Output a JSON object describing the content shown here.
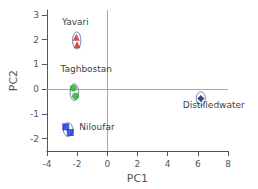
{
  "chart_data": {
    "type": "scatter",
    "title": "",
    "xlabel": "PC1",
    "ylabel": "PC2",
    "xlim": [
      -4,
      8
    ],
    "ylim": [
      -2.5,
      3.2
    ],
    "xticks": [
      -4,
      -2,
      0,
      2,
      4,
      6,
      8
    ],
    "yticks": [
      -2,
      -1,
      0,
      1,
      2,
      3
    ],
    "grid": false,
    "ref_lines": {
      "x": [
        0
      ],
      "y": [
        0
      ],
      "color": "#aaaaaa"
    },
    "series": [
      {
        "name": "Yavari",
        "marker": "triangle",
        "color": "#cc2222",
        "values": [
          [
            -2.05,
            2.1
          ],
          [
            -2.0,
            1.8
          ]
        ],
        "ellipse": {
          "center": [
            -2.02,
            1.97
          ],
          "width": 0.55,
          "height": 0.68,
          "color": "#5577aa"
        }
      },
      {
        "name": "Taghbostan",
        "marker": "circle",
        "color": "#22aa22",
        "values": [
          [
            -2.25,
            0.05
          ],
          [
            -2.1,
            -0.28
          ]
        ],
        "ellipse": {
          "center": [
            -2.18,
            -0.12
          ],
          "width": 0.55,
          "height": 0.68,
          "color": "#5577aa"
        }
      },
      {
        "name": "Niloufar",
        "marker": "square",
        "color": "#1133cc",
        "values": [
          [
            -2.75,
            -1.52
          ],
          [
            -2.45,
            -1.75
          ]
        ],
        "ellipse": {
          "center": [
            -2.6,
            -1.63
          ],
          "width": 0.62,
          "height": 0.55,
          "color": "#5577aa"
        }
      },
      {
        "name": "Distilledwater",
        "marker": "diamond",
        "color": "#111155",
        "values": [
          [
            6.2,
            -0.38
          ]
        ],
        "ellipse": {
          "center": [
            6.2,
            -0.38
          ],
          "width": 0.6,
          "height": 0.55,
          "color": "#5577aa"
        }
      }
    ],
    "annotations": [
      {
        "text": "Yavari",
        "x": -3.0,
        "y": 2.55
      },
      {
        "text": "Taghbostan",
        "x": -3.1,
        "y": 0.65
      },
      {
        "text": "Niloufar",
        "x": -1.85,
        "y": -1.72
      },
      {
        "text": "Distilledwater",
        "x": 5.0,
        "y": -0.82
      }
    ]
  }
}
